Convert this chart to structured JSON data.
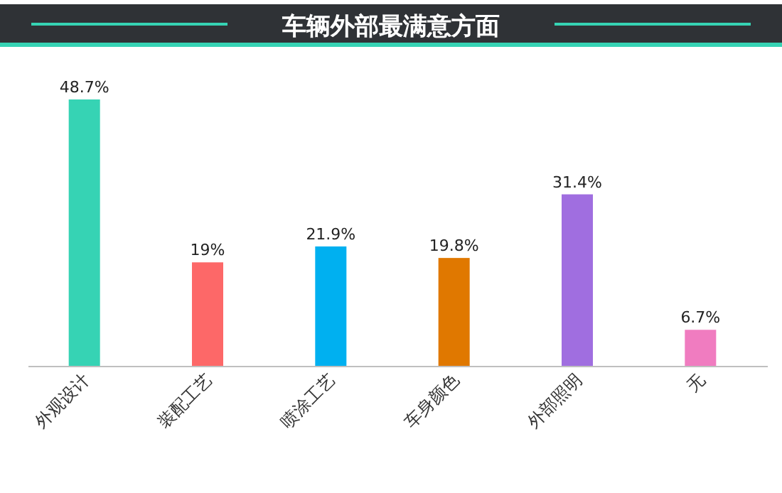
{
  "chart_data": {
    "type": "bar",
    "title": "车辆外部最满意方面",
    "categories": [
      "外观设计",
      "装配工艺",
      "喷涂工艺",
      "车身颜色",
      "外部照明",
      "无"
    ],
    "values": [
      48.7,
      19,
      21.9,
      19.8,
      31.4,
      6.7
    ],
    "colors": [
      "#36d3b4",
      "#fd6868",
      "#00b0f0",
      "#e07800",
      "#a06ee0",
      "#f07cc0"
    ],
    "value_labels": [
      "48.7%",
      "19%",
      "21.9%",
      "19.8%",
      "31.4%",
      "6.7%"
    ]
  }
}
